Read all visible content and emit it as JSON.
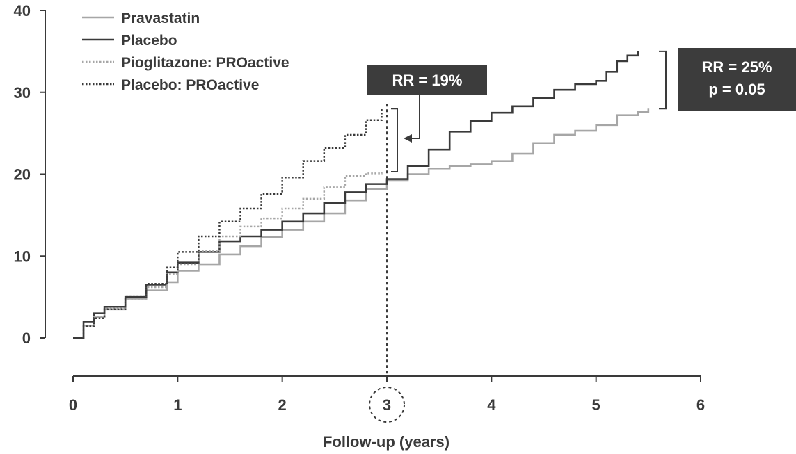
{
  "chart_data": {
    "type": "line",
    "title": "",
    "xlabel": "Follow-up (years)",
    "ylabel": "",
    "xlim": [
      0,
      6
    ],
    "ylim": [
      0,
      40
    ],
    "x_ticks": [
      0,
      1,
      2,
      3,
      4,
      5,
      6
    ],
    "y_ticks": [
      0,
      10,
      20,
      30,
      40
    ],
    "highlighted_x_tick": 3,
    "reference_line_x": 3,
    "legend_position": "top-left",
    "series": [
      {
        "name": "Pravastatin",
        "style": "solid",
        "color": "#a6a6a6",
        "x": [
          0,
          0.1,
          0.2,
          0.3,
          0.5,
          0.7,
          0.9,
          1.0,
          1.2,
          1.4,
          1.6,
          1.8,
          2.0,
          2.2,
          2.4,
          2.6,
          2.8,
          3.0,
          3.2,
          3.4,
          3.6,
          3.8,
          4.0,
          4.2,
          4.4,
          4.6,
          4.8,
          5.0,
          5.2,
          5.4,
          5.5
        ],
        "y": [
          0,
          1.5,
          2.5,
          3.5,
          4.8,
          5.8,
          6.8,
          8.2,
          9.0,
          10.2,
          11.2,
          12.3,
          13.2,
          14.2,
          15.2,
          16.8,
          18.2,
          19.2,
          20.0,
          20.7,
          21.0,
          21.2,
          21.6,
          22.5,
          23.8,
          24.8,
          25.3,
          26.0,
          27.2,
          27.6,
          28.0
        ]
      },
      {
        "name": "Placebo",
        "style": "solid",
        "color": "#3a3a3a",
        "x": [
          0,
          0.1,
          0.2,
          0.3,
          0.5,
          0.7,
          0.9,
          1.0,
          1.2,
          1.4,
          1.6,
          1.8,
          2.0,
          2.2,
          2.4,
          2.6,
          2.8,
          3.0,
          3.2,
          3.4,
          3.6,
          3.8,
          4.0,
          4.2,
          4.4,
          4.6,
          4.8,
          5.0,
          5.1,
          5.2,
          5.3,
          5.4
        ],
        "y": [
          0,
          2.0,
          3.0,
          3.8,
          5.0,
          6.5,
          8.0,
          9.2,
          10.5,
          11.8,
          12.4,
          13.2,
          14.2,
          15.2,
          16.5,
          17.8,
          18.8,
          19.4,
          21.0,
          23.0,
          25.2,
          26.5,
          27.5,
          28.3,
          29.3,
          30.3,
          31.0,
          31.4,
          32.5,
          33.8,
          34.5,
          35.0
        ]
      },
      {
        "name": "Pioglitazone: PROactive",
        "style": "dotted",
        "color": "#a6a6a6",
        "x": [
          0,
          0.1,
          0.2,
          0.3,
          0.5,
          0.7,
          0.9,
          1.0,
          1.2,
          1.4,
          1.6,
          1.8,
          2.0,
          2.2,
          2.4,
          2.6,
          2.8,
          2.95
        ],
        "y": [
          0,
          1.5,
          2.6,
          3.6,
          4.8,
          6.2,
          7.8,
          9.0,
          10.6,
          12.4,
          13.6,
          14.6,
          15.8,
          17.0,
          18.4,
          19.8,
          20.1,
          20.3
        ]
      },
      {
        "name": "Placebo: PROactive",
        "style": "dotted",
        "color": "#3a3a3a",
        "x": [
          0,
          0.1,
          0.2,
          0.3,
          0.5,
          0.7,
          0.9,
          1.0,
          1.2,
          1.4,
          1.6,
          1.8,
          2.0,
          2.2,
          2.4,
          2.6,
          2.8,
          2.95
        ],
        "y": [
          0,
          1.4,
          2.4,
          3.5,
          5.0,
          6.6,
          8.6,
          10.5,
          12.4,
          14.2,
          15.8,
          17.6,
          19.6,
          21.6,
          23.2,
          24.8,
          26.6,
          28.0
        ]
      }
    ],
    "annotations": [
      {
        "id": "rr19",
        "line1": "RR = 19%",
        "line2": ""
      },
      {
        "id": "rr25",
        "line1": "RR = 25%",
        "line2": "p = 0.05"
      }
    ]
  }
}
